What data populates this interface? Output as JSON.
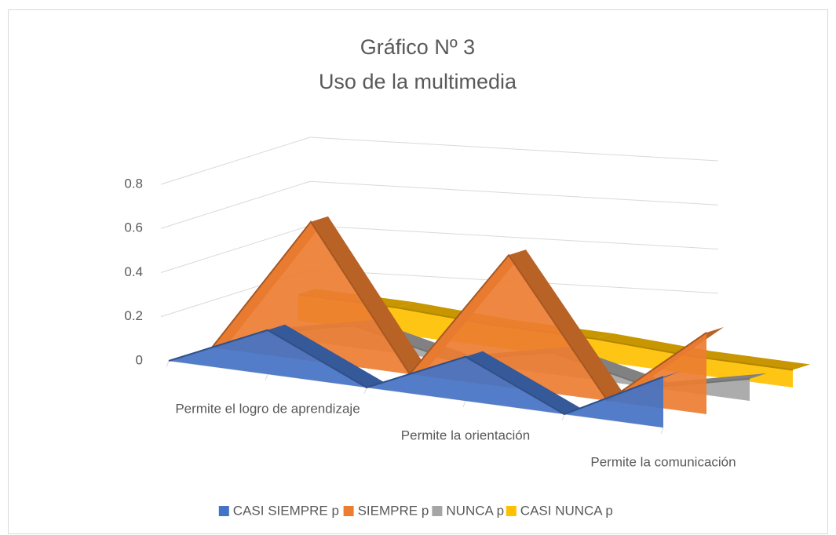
{
  "chart_data": {
    "type": "line3d",
    "title": "Gráfico Nº 3",
    "subtitle": "Uso de la multimedia",
    "categories": [
      null,
      "Permite el logro de aprendizaje",
      null,
      "Permite la orientación",
      null,
      "Permite la comunicación"
    ],
    "series": [
      {
        "name": "CASI SIEMPRE p",
        "color": "#4472c4",
        "values": [
          0,
          0.2,
          0,
          0.2,
          0,
          0.23
        ]
      },
      {
        "name": "SIEMPRE p",
        "color": "#ed7d31",
        "values": [
          0,
          0.63,
          0,
          0.6,
          0,
          0.37
        ]
      },
      {
        "name": "NUNCA p",
        "color": "#a5a5a5",
        "values": [
          0,
          0.1,
          0,
          0.1,
          0,
          0.1
        ]
      },
      {
        "name": "CASI NUNCA p",
        "color": "#ffc000",
        "values": [
          0.12,
          0.12,
          0.1,
          0.1,
          0.08,
          0.08
        ]
      }
    ],
    "ylim": [
      0,
      0.8
    ],
    "yticks": [
      0,
      0.2,
      0.4,
      0.6,
      0.8
    ],
    "grid": true,
    "legend": "bottom"
  }
}
